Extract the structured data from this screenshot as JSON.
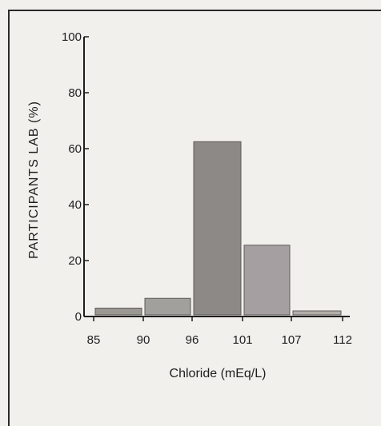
{
  "chart_data": {
    "type": "bar",
    "xlabel": "Chloride (mEq/L)",
    "ylabel": "PARTICIPANTS LAB (%)",
    "x_ticks": [
      "85",
      "90",
      "96",
      "101",
      "107",
      "112"
    ],
    "y_ticks": [
      "0",
      "20",
      "40",
      "60",
      "80",
      "100"
    ],
    "ylim": [
      0,
      100
    ],
    "bins": [
      {
        "range": "85-90",
        "value": 3
      },
      {
        "range": "90-96",
        "value": 6.5
      },
      {
        "range": "96-101",
        "value": 62.5
      },
      {
        "range": "101-107",
        "value": 25.5
      },
      {
        "range": "107-112",
        "value": 2
      }
    ],
    "grid": false
  }
}
